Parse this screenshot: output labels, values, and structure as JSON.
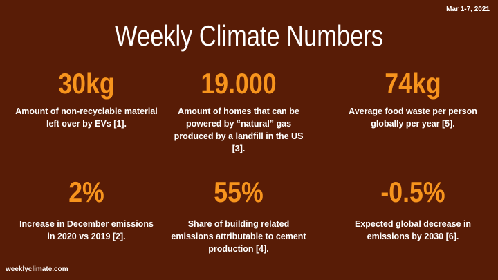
{
  "header": {
    "date": "Mar 1-7, 2021",
    "title": "Weekly Climate Numbers"
  },
  "stats": [
    {
      "value": "30kg",
      "description": "Amount of non-recyclable material left over by EVs [1]."
    },
    {
      "value": "19.000",
      "description": "Amount of homes that can be powered by “natural” gas produced by a landfill in the US [3]."
    },
    {
      "value": "74kg",
      "description": "Average food waste per person globally per year [5]."
    },
    {
      "value": "2%",
      "description": "Increase in December emissions in 2020 vs 2019 [2]."
    },
    {
      "value": "55%",
      "description": "Share of building related emissions attributable to cement production [4]."
    },
    {
      "value": "-0.5%",
      "description": "Expected global decrease in emissions by 2030 [6]."
    }
  ],
  "footer": {
    "site": "weeklyclimate.com"
  }
}
